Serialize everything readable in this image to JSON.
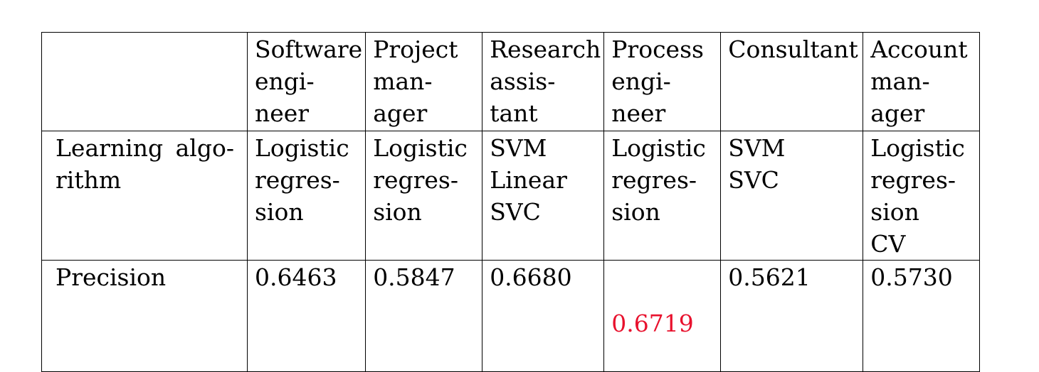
{
  "table": {
    "header_cells": [
      "",
      "Software\nengi-\nneer",
      "Project\nman-\nager",
      "Research\nassis-\ntant",
      "Process\nengi-\nneer",
      "Consultant",
      "Account\nman-\nager"
    ],
    "algorithm_row": {
      "label_line1_word1": "Learning",
      "label_line1_word2": "algo-",
      "label_line2": "rithm",
      "cells": [
        "Logistic\nregres-\nsion",
        "Logistic\nregres-\nsion",
        "SVM\nLinear\nSVC",
        "Logistic\nregres-\nsion",
        "SVM\nSVC",
        "Logistic\nregres-\nsion\nCV"
      ]
    },
    "precision_row": {
      "label": "Precision",
      "cells": [
        "0.6463",
        "0.5847",
        "0.6680",
        "0.6719",
        "0.5621",
        "0.5730"
      ],
      "highlight_color": "#e8112d"
    }
  }
}
